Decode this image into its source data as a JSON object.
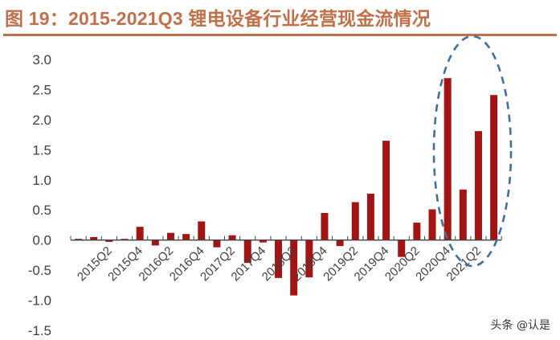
{
  "title": "图 19：2015-2021Q3 锂电设备行业经营现金流情况",
  "watermark": "头条 @认是",
  "colors": {
    "title": "#c0704a",
    "bar": "#a31515",
    "axis": "#404040",
    "highlight_ellipse": "#3f6f9a"
  },
  "chart_data": {
    "type": "bar",
    "title": "2015-2021Q3 锂电设备行业经营现金流情况",
    "xlabel": "",
    "ylabel": "",
    "ylim": [
      -1.5,
      3.0
    ],
    "yticks": [
      "3.0",
      "2.5",
      "2.0",
      "1.5",
      "1.0",
      "0.5",
      "0.0",
      "-0.5",
      "-1.0",
      "-1.5"
    ],
    "grid": false,
    "legend": null,
    "categories": [
      "2014Q4",
      "2015Q1",
      "2015Q2",
      "2015Q3",
      "2015Q4",
      "2016Q1",
      "2016Q2",
      "2016Q3",
      "2016Q4",
      "2017Q1",
      "2017Q2",
      "2017Q3",
      "2017Q4",
      "2018Q1",
      "2018Q2",
      "2018Q3",
      "2018Q4",
      "2019Q1",
      "2019Q2",
      "2019Q3",
      "2019Q4",
      "2020Q1",
      "2020Q2",
      "2020Q3",
      "2020Q4",
      "2021Q1",
      "2021Q2",
      "2021Q3"
    ],
    "visible_tick_labels": [
      "2015Q2",
      "2015Q4",
      "2016Q2",
      "2016Q4",
      "2017Q2",
      "2017Q4",
      "2018Q2",
      "2018Q4",
      "2019Q2",
      "2019Q4",
      "2020Q2",
      "2020Q4",
      "2021Q2"
    ],
    "values": [
      0.0,
      0.05,
      -0.03,
      0.02,
      0.22,
      -0.09,
      0.12,
      0.1,
      0.31,
      -0.12,
      0.08,
      -0.38,
      -0.04,
      -0.63,
      -0.92,
      -0.62,
      0.45,
      -0.1,
      0.63,
      0.77,
      1.65,
      -0.28,
      0.29,
      0.51,
      2.69,
      0.84,
      1.81,
      2.41
    ],
    "annotations": [
      "dashed ellipse highlighting 2020Q4–2021Q3 bars"
    ]
  }
}
